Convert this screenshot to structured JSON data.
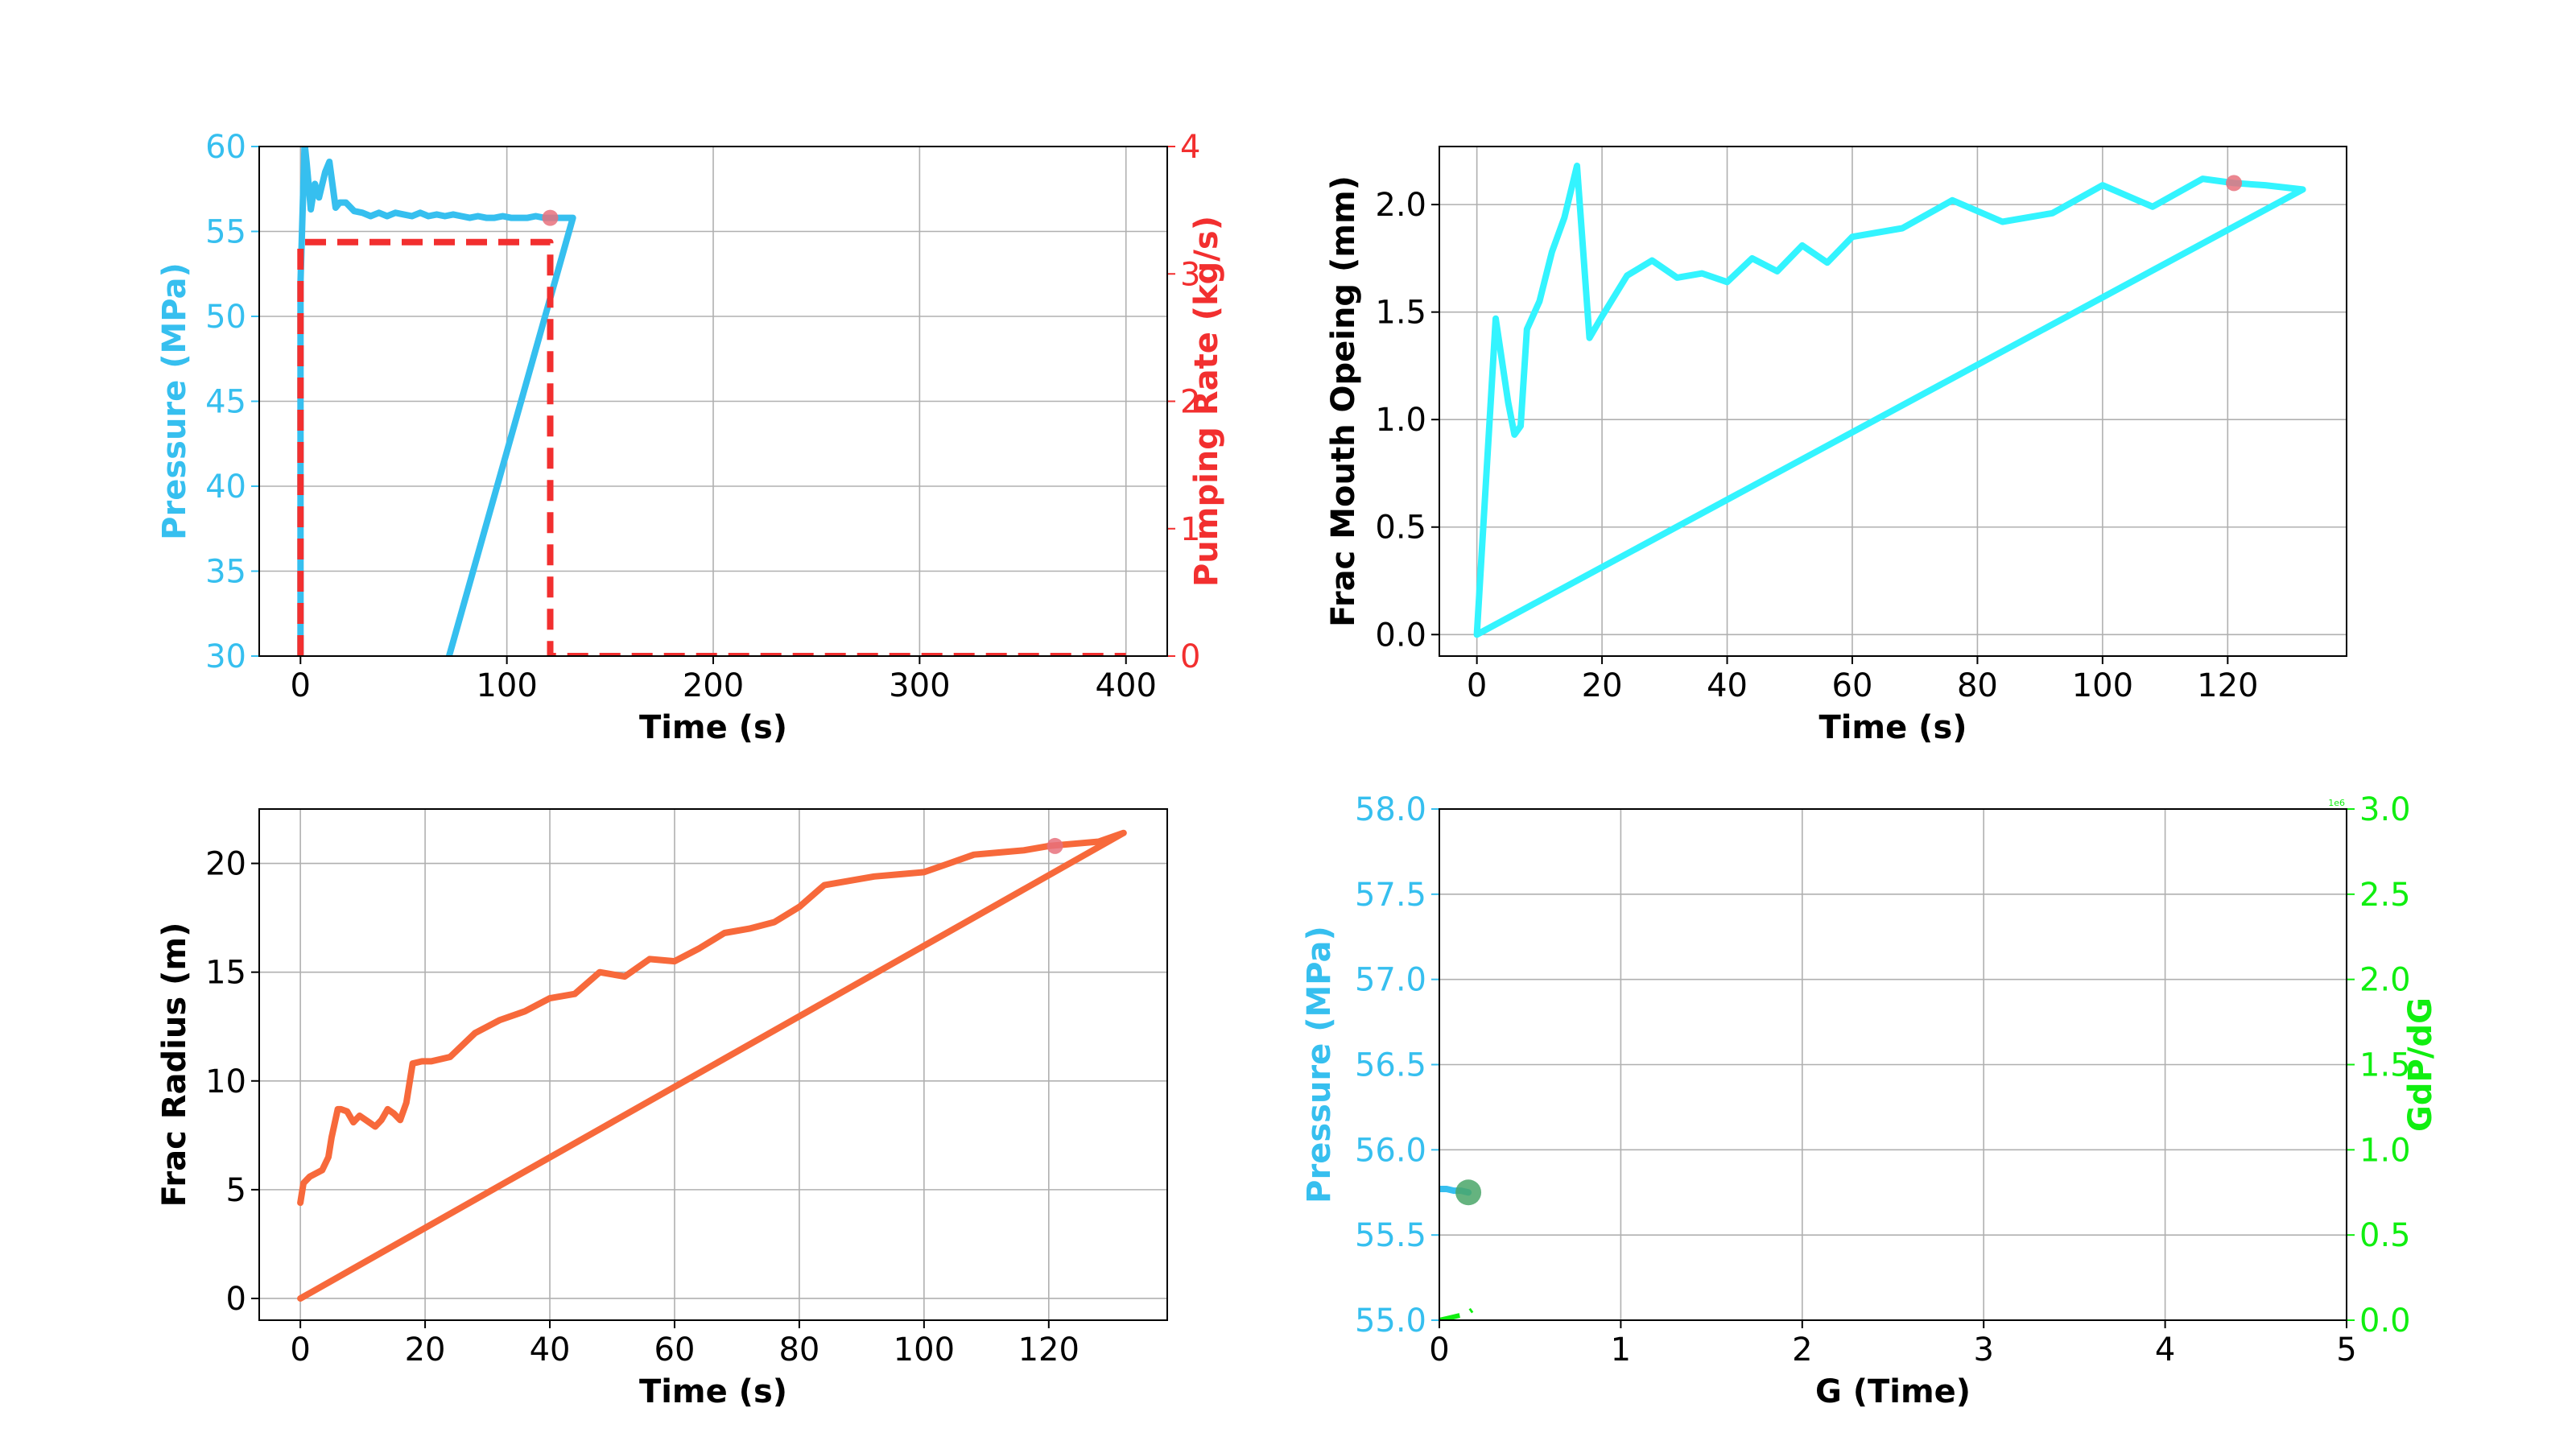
{
  "colors": {
    "pressure": "#36bfef",
    "pumping": "#f22f2f",
    "opening": "#33f4ff",
    "radius": "#f7693b",
    "gdpdg": "#10ee10",
    "marker_red": "#e8717d",
    "marker_green": "#4aa668"
  },
  "chart_data": [
    {
      "type": "line",
      "xlabel": "Time (s)",
      "ylabel": "Pressure (MPa)",
      "y2label": "Pumping Rate (kg/s)",
      "xlim": [
        -20,
        420
      ],
      "ylim": [
        30,
        60
      ],
      "y2lim": [
        0,
        4
      ],
      "xticks": [
        "0",
        "100",
        "200",
        "300",
        "400"
      ],
      "yticks": [
        "30",
        "35",
        "40",
        "45",
        "50",
        "55",
        "60"
      ],
      "y2ticks": [
        "0",
        "1",
        "2",
        "3",
        "4"
      ],
      "grid": true,
      "series": [
        {
          "axis": "y",
          "style": "solid",
          "x": [
            0,
            0,
            2,
            3,
            5,
            7,
            9,
            12,
            14,
            17,
            19,
            22,
            26,
            30,
            34,
            38,
            42,
            46,
            50,
            54,
            58,
            62,
            66,
            70,
            74,
            78,
            82,
            86,
            90,
            94,
            98,
            102,
            106,
            110,
            114,
            118,
            121,
            125,
            129,
            132,
            72
          ],
          "y": [
            30,
            52,
            60.2,
            59.0,
            56.3,
            57.8,
            57.0,
            58.5,
            59.1,
            56.4,
            56.7,
            56.7,
            56.2,
            56.1,
            55.9,
            56.1,
            55.9,
            56.1,
            56.0,
            55.9,
            56.1,
            55.9,
            56.0,
            55.9,
            56.0,
            55.9,
            55.8,
            55.9,
            55.8,
            55.8,
            55.9,
            55.8,
            55.8,
            55.8,
            55.9,
            55.8,
            55.8,
            55.8,
            55.8,
            55.8,
            30
          ]
        },
        {
          "axis": "y2",
          "style": "dashed",
          "x": [
            0,
            0,
            121,
            121,
            400
          ],
          "y": [
            0,
            3.25,
            3.25,
            0,
            0
          ]
        }
      ],
      "markers": [
        {
          "x": 121,
          "y": 55.8
        }
      ]
    },
    {
      "type": "line",
      "xlabel": "Time (s)",
      "ylabel": "Frac Mouth Opeing (mm)",
      "xlim": [
        -6,
        139
      ],
      "ylim": [
        -0.1,
        2.27
      ],
      "xticks": [
        "0",
        "20",
        "40",
        "60",
        "80",
        "100",
        "120"
      ],
      "yticks": [
        "0.0",
        "0.5",
        "1.0",
        "1.5",
        "2.0"
      ],
      "grid": true,
      "series": [
        {
          "x": [
            0,
            3,
            5,
            6,
            7,
            8,
            10,
            12,
            14,
            16,
            18,
            20,
            24,
            28,
            32,
            36,
            40,
            44,
            48,
            52,
            56,
            60,
            68,
            76,
            84,
            92,
            100,
            108,
            116,
            121,
            126,
            132,
            0
          ],
          "y": [
            0.0,
            1.47,
            1.08,
            0.93,
            0.97,
            1.42,
            1.55,
            1.78,
            1.94,
            2.18,
            1.38,
            1.48,
            1.67,
            1.74,
            1.66,
            1.68,
            1.64,
            1.75,
            1.69,
            1.81,
            1.73,
            1.85,
            1.89,
            2.02,
            1.92,
            1.96,
            2.09,
            1.99,
            2.12,
            2.1,
            2.09,
            2.07,
            0.0
          ]
        }
      ],
      "markers": [
        {
          "x": 121,
          "y": 2.1
        }
      ]
    },
    {
      "type": "line",
      "xlabel": "Time (s)",
      "ylabel": "Frac Radius (m)",
      "xlim": [
        -6.6,
        139
      ],
      "ylim": [
        -1.0,
        22.5
      ],
      "xticks": [
        "0",
        "20",
        "40",
        "60",
        "80",
        "100",
        "120"
      ],
      "yticks": [
        "0",
        "5",
        "10",
        "15",
        "20"
      ],
      "grid": true,
      "series": [
        {
          "x": [
            0,
            0.5,
            1.5,
            3.5,
            4.5,
            5,
            6,
            6.5,
            7.5,
            8.5,
            9.5,
            11,
            12,
            13,
            14,
            15,
            16,
            17,
            18,
            19.5,
            21,
            24,
            28,
            32,
            36,
            40,
            44,
            48,
            52,
            56,
            60,
            64,
            68,
            72,
            76,
            80,
            84,
            88,
            92,
            96,
            100,
            104,
            108,
            112,
            116,
            120,
            124,
            128,
            132,
            0
          ],
          "y": [
            4.4,
            5.3,
            5.6,
            5.9,
            6.5,
            7.4,
            8.7,
            8.7,
            8.6,
            8.1,
            8.4,
            8.1,
            7.9,
            8.2,
            8.7,
            8.5,
            8.2,
            9.0,
            10.8,
            10.9,
            10.9,
            11.1,
            12.2,
            12.8,
            13.2,
            13.8,
            14.0,
            15.0,
            14.8,
            15.6,
            15.5,
            16.1,
            16.8,
            17.0,
            17.3,
            18.0,
            19.0,
            19.2,
            19.4,
            19.5,
            19.6,
            20.0,
            20.4,
            20.5,
            20.6,
            20.8,
            20.9,
            21.0,
            21.4,
            0.0
          ]
        }
      ],
      "markers": [
        {
          "x": 121,
          "y": 20.8
        }
      ]
    },
    {
      "type": "line",
      "xlabel": "G (Time)",
      "ylabel": "Pressure (MPa)",
      "y2label": "GdP/dG",
      "y2offset": "1e6",
      "xlim": [
        0,
        5
      ],
      "ylim": [
        55.0,
        58.0
      ],
      "y2lim": [
        0,
        3.0
      ],
      "xticks": [
        "0",
        "1",
        "2",
        "3",
        "4",
        "5"
      ],
      "yticks": [
        "55.0",
        "55.5",
        "56.0",
        "56.5",
        "57.0",
        "57.5",
        "58.0"
      ],
      "y2ticks": [
        "0.0",
        "0.5",
        "1.0",
        "1.5",
        "2.0",
        "2.5",
        "3.0"
      ],
      "grid": true,
      "series": [
        {
          "axis": "y",
          "x": [
            0.0,
            0.04,
            0.08,
            0.12,
            0.16
          ],
          "y": [
            55.77,
            55.77,
            55.76,
            55.76,
            55.75
          ]
        },
        {
          "axis": "y2",
          "style": "dashed",
          "x": [
            0.0,
            0.04,
            0.08,
            0.12,
            0.16,
            0.18
          ],
          "y": [
            0.0,
            0.01,
            0.02,
            0.03,
            0.045,
            0.06
          ]
        }
      ],
      "markers": [
        {
          "x": 0.16,
          "y": 55.75
        }
      ]
    }
  ]
}
